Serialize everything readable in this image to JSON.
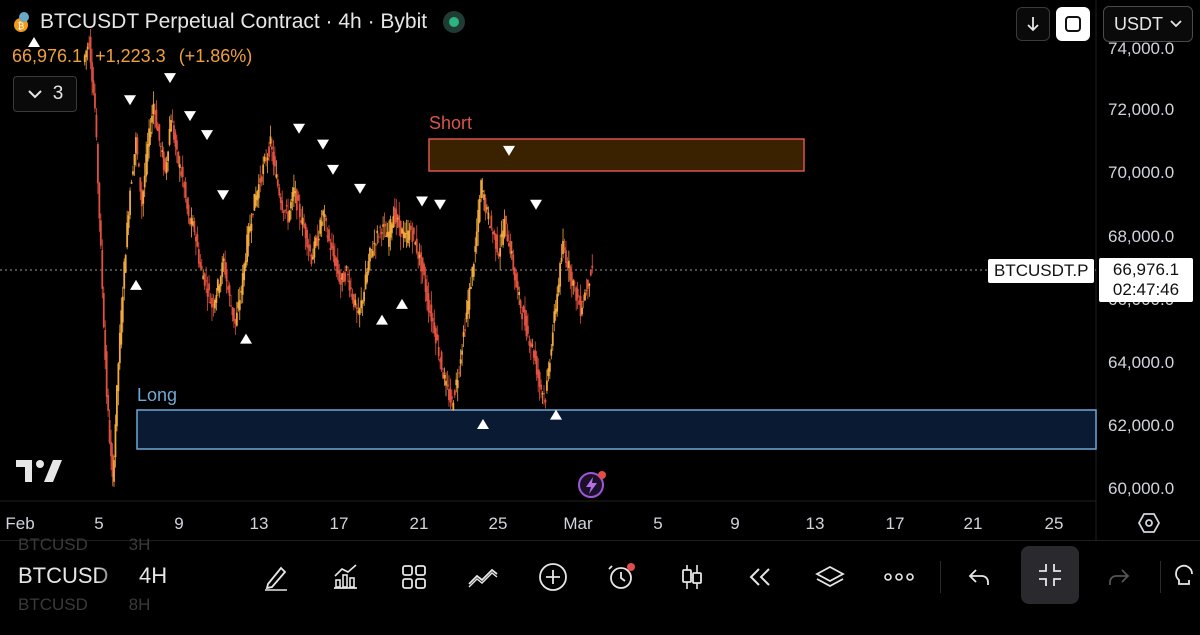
{
  "header": {
    "title": "BTCUSDT Perpetual Contract · 4h · Bybit",
    "last_price": "66,976.1",
    "change": "+1,223.3",
    "change_pct": "(+1.86%)",
    "indicator_count": "3",
    "currency": "USDT"
  },
  "price_axis": {
    "labels": [
      "74,000.0",
      "72,000.0",
      "70,000.0",
      "68,000.0",
      "66,000.0",
      "64,000.0",
      "62,000.0",
      "60,000.0"
    ]
  },
  "time_axis": {
    "labels": [
      "Feb",
      "5",
      "9",
      "13",
      "17",
      "21",
      "25",
      "Mar",
      "5",
      "9",
      "13",
      "17",
      "21",
      "25"
    ]
  },
  "current_price": {
    "symbol": "BTCUSDT.P",
    "price": "66,976.1",
    "countdown": "02:47:46"
  },
  "zones": {
    "short_label": "Short",
    "long_label": "Long"
  },
  "toolbar": {
    "symbol": "BTCUSD",
    "interval": "4H",
    "ghost_above": [
      "BTCUSD",
      "3H"
    ],
    "ghost_below": [
      "BTCUSD",
      "8H"
    ]
  },
  "colors": {
    "up": "#f2a93b",
    "down": "#e2503f",
    "short_zone": "#d9544f",
    "long_zone": "#6fa8d6",
    "accent": "#9b59d6"
  },
  "chart_data": {
    "type": "candlestick",
    "symbol": "BTCUSDT.P",
    "interval": "4h",
    "ylim": [
      59800,
      74800
    ],
    "ticks_y": [
      60000,
      62000,
      64000,
      66000,
      68000,
      70000,
      72000,
      74000
    ],
    "zones": [
      {
        "label": "Short",
        "low": 70100,
        "high": 71150,
        "from": "Feb 22",
        "to": "Mar 13"
      },
      {
        "label": "Long",
        "low": 61200,
        "high": 62500,
        "from": "Feb 7",
        "to": "Mar 27"
      }
    ],
    "swing_highs": [
      72000,
      72700,
      71500,
      70900,
      69000,
      71100,
      70600,
      69800,
      69200,
      68800,
      68700,
      70400,
      68700
    ],
    "swing_lows": [
      66800,
      65100,
      65700,
      66200,
      64100,
      62400,
      62700
    ],
    "close_series": [
      73500,
      74200,
      72000,
      67500,
      63000,
      60200,
      64000,
      67000,
      69500,
      71000,
      69000,
      70800,
      72200,
      71000,
      70000,
      71800,
      70500,
      69800,
      68500,
      68200,
      67000,
      66500,
      65800,
      66400,
      67200,
      66000,
      65200,
      66300,
      67800,
      68900,
      69600,
      70300,
      70900,
      69800,
      69000,
      68600,
      69400,
      68700,
      68100,
      67300,
      67900,
      68700,
      67800,
      67200,
      66500,
      66900,
      66100,
      65400,
      66300,
      67400,
      67900,
      68300,
      67900,
      68700,
      68300,
      67900,
      68200,
      67600,
      66900,
      65800,
      65100,
      64100,
      63200,
      62700,
      63600,
      64900,
      66200,
      67600,
      69600,
      68700,
      68100,
      67500,
      68400,
      67600,
      66400,
      65600,
      64900,
      64300,
      63300,
      62900,
      64600,
      66200,
      67700,
      67000,
      66300,
      65700,
      66400,
      66976.1
    ],
    "last_price": 66976.1
  }
}
